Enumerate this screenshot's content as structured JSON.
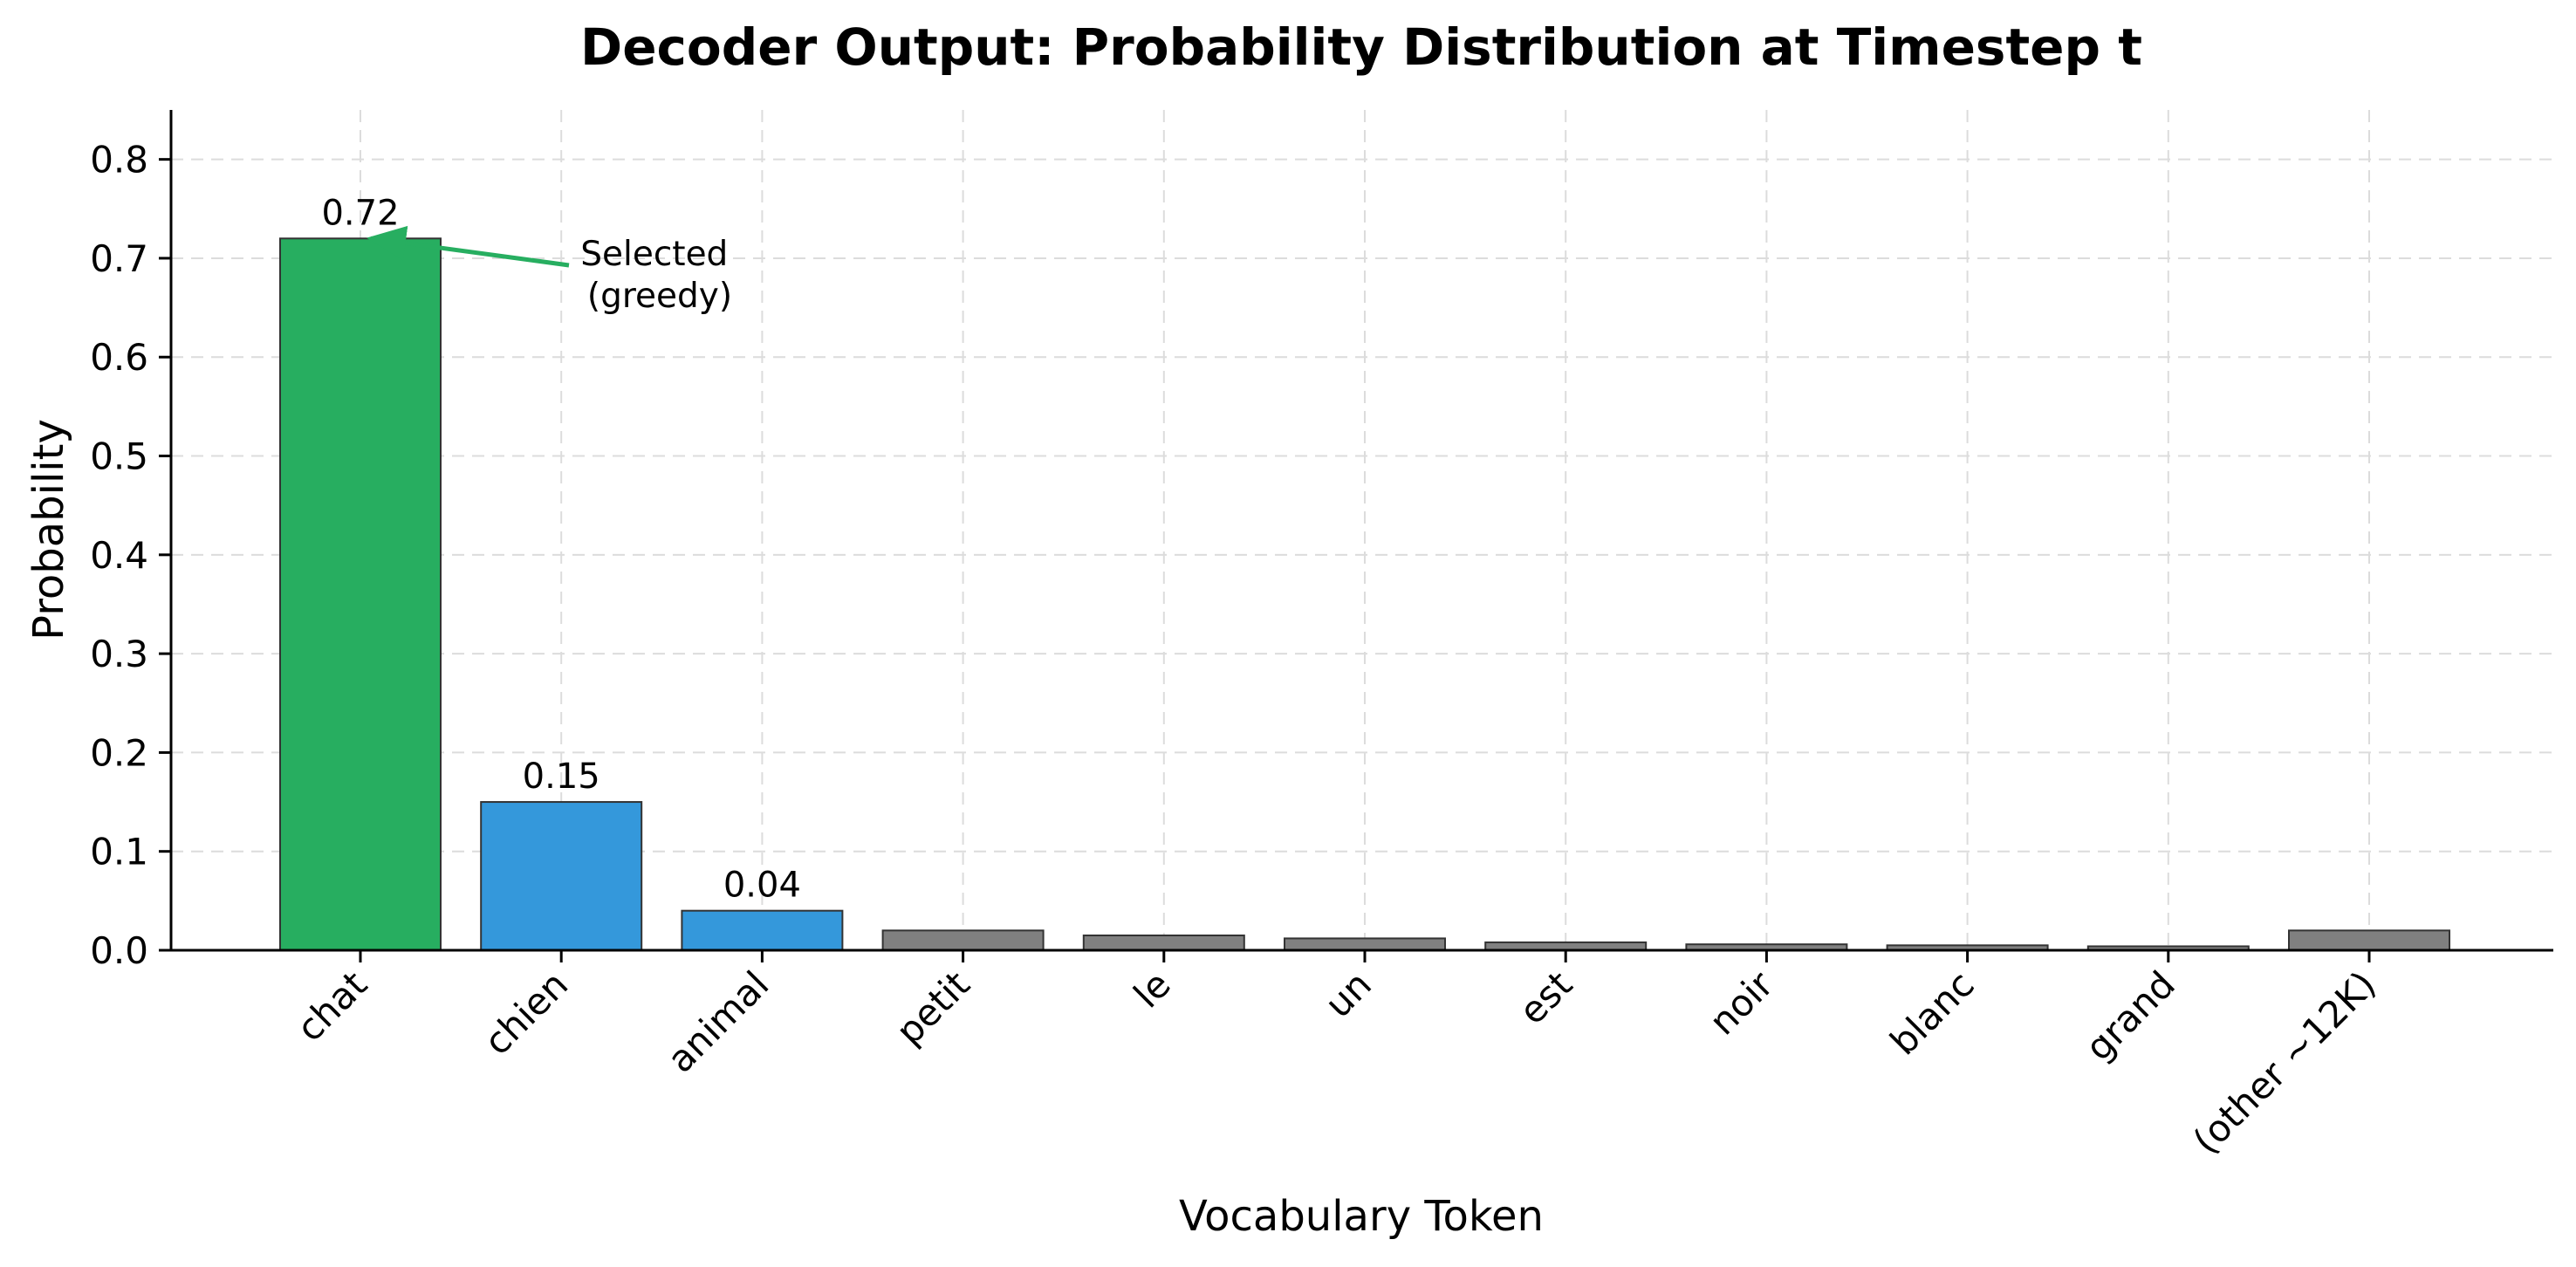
{
  "chart_data": {
    "type": "bar",
    "title": "Decoder Output: Probability Distribution at Timestep t",
    "xlabel": "Vocabulary Token",
    "ylabel": "Probability",
    "ylim": [
      0,
      0.85
    ],
    "yticks": [
      "0.0",
      "0.1",
      "0.2",
      "0.3",
      "0.4",
      "0.5",
      "0.6",
      "0.7",
      "0.8"
    ],
    "ytick_values": [
      0,
      0.1,
      0.2,
      0.3,
      0.4,
      0.5,
      0.6,
      0.7,
      0.8
    ],
    "grid": true,
    "categories": [
      "chat",
      "chien",
      "animal",
      "petit",
      "le",
      "un",
      "est",
      "noir",
      "blanc",
      "grand",
      "(other ~12K)"
    ],
    "values": [
      0.72,
      0.15,
      0.04,
      0.02,
      0.015,
      0.012,
      0.008,
      0.006,
      0.005,
      0.004,
      0.02
    ],
    "colors": [
      "#27ae60",
      "#3498db",
      "#3498db",
      "#808080",
      "#808080",
      "#808080",
      "#808080",
      "#808080",
      "#808080",
      "#808080",
      "#808080"
    ],
    "data_labels": [
      {
        "index": 0,
        "text": "0.72"
      },
      {
        "index": 1,
        "text": "0.15"
      },
      {
        "index": 2,
        "text": "0.04"
      }
    ],
    "annotation": {
      "lines": [
        "Selected",
        "(greedy)"
      ],
      "target_index": 0,
      "color": "#27ae60"
    }
  }
}
